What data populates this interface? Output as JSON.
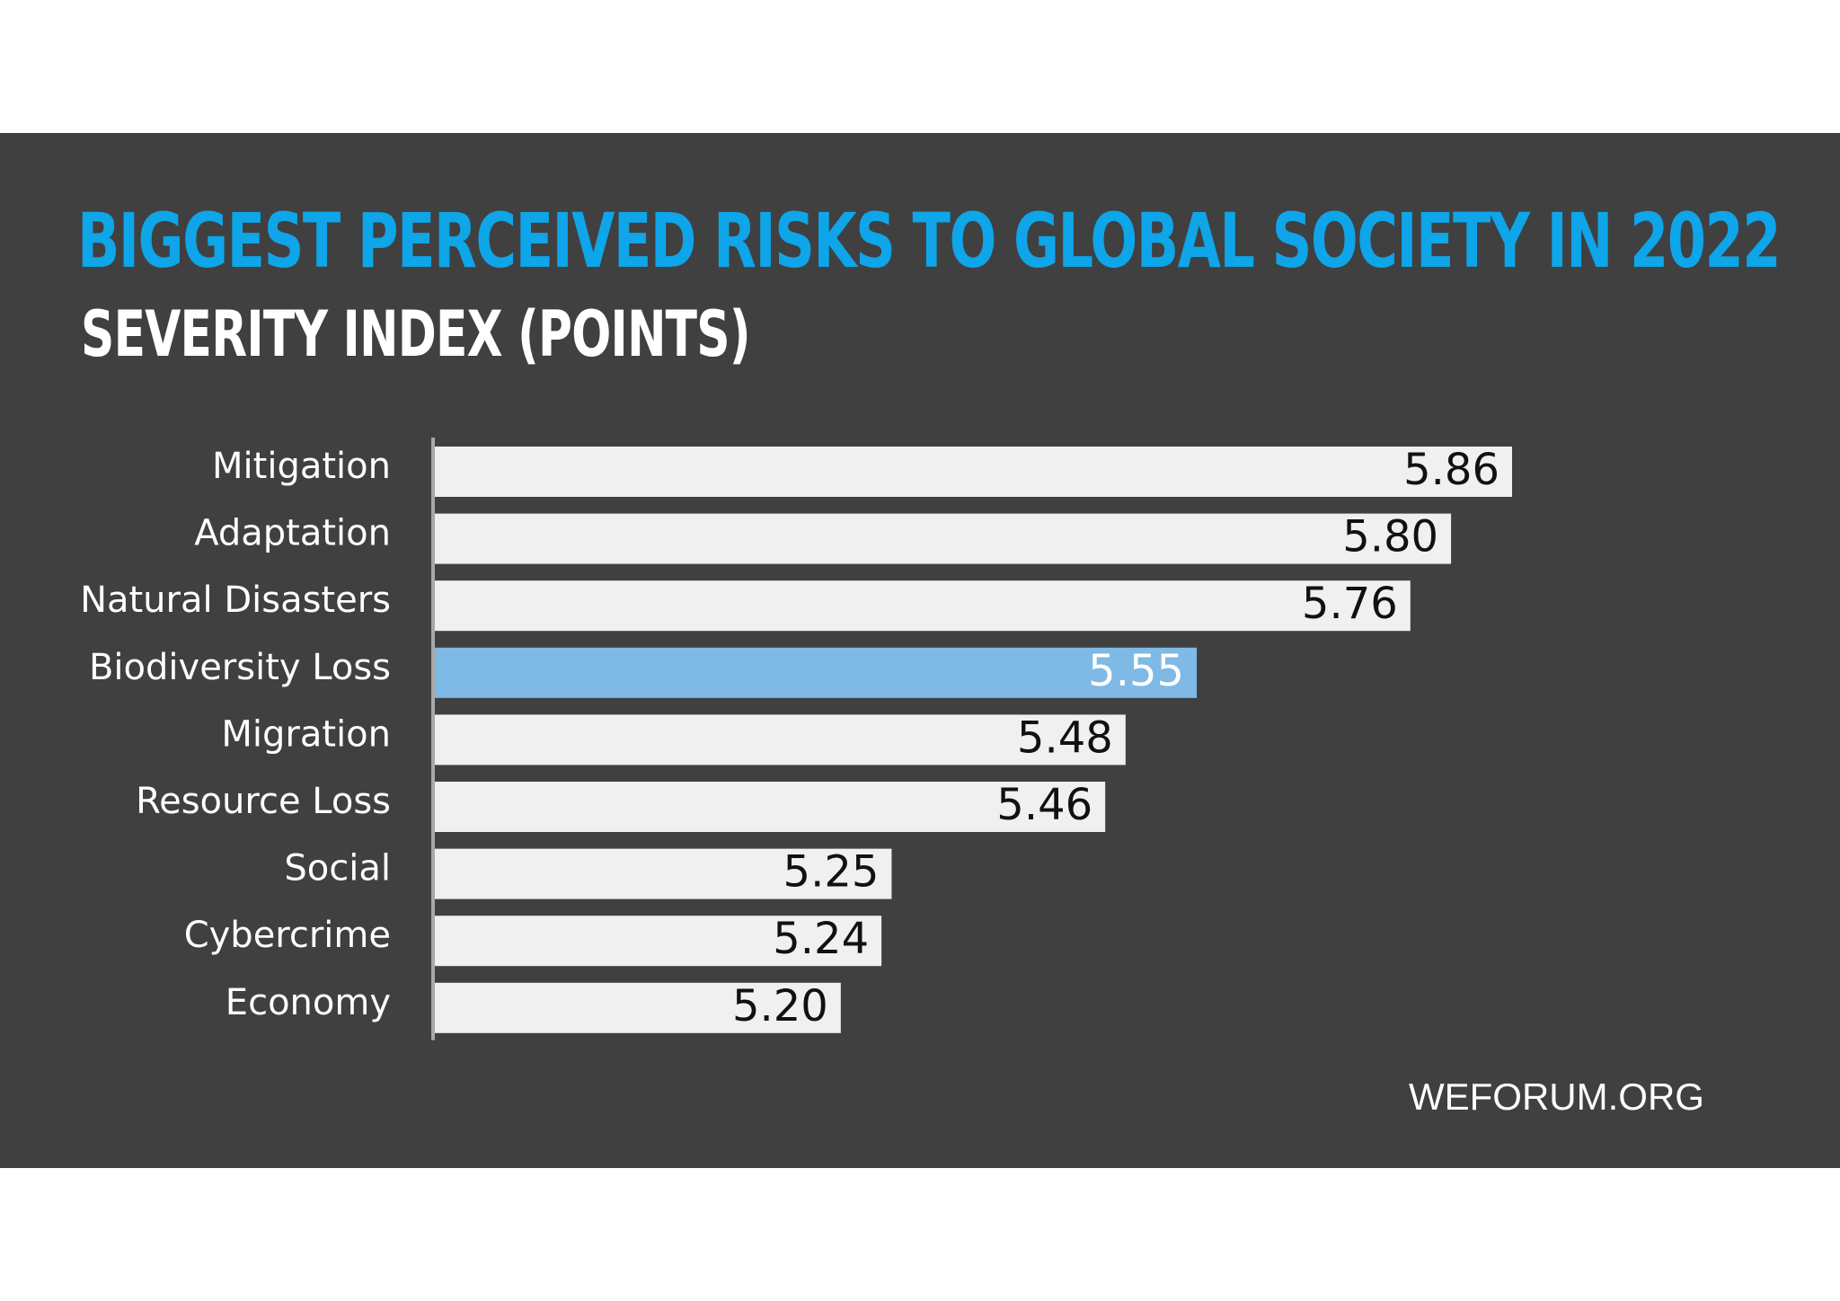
{
  "chart_data": {
    "type": "bar",
    "orientation": "horizontal",
    "title": "BIGGEST PERCEIVED RISKS TO GLOBAL SOCIETY IN 2022",
    "subtitle": "SEVERITY INDEX (POINTS)",
    "categories": [
      "Mitigation",
      "Adaptation",
      "Natural Disasters",
      "Biodiversity Loss",
      "Migration",
      "Resource Loss",
      "Social",
      "Cybercrime",
      "Economy"
    ],
    "values": [
      5.86,
      5.8,
      5.76,
      5.55,
      5.48,
      5.46,
      5.25,
      5.24,
      5.2
    ],
    "value_labels": [
      "5.86",
      "5.80",
      "5.76",
      "5.55",
      "5.48",
      "5.46",
      "5.25",
      "5.24",
      "5.20"
    ],
    "highlighted": "Biodiversity Loss",
    "xlim": [
      4.8,
      5.86
    ],
    "grid": false,
    "legend": "none"
  },
  "source": "WEFORUM.ORG",
  "colors": {
    "background": "#404040",
    "page": "#ffffff",
    "title": "#0ea5e9",
    "subtitle": "#ffffff",
    "bar": "#f0f0f0",
    "bar_highlight": "#7fb9e6",
    "bar_text": "#111111",
    "bar_text_highlight": "#ffffff",
    "category_text": "#ffffff",
    "axis": "#a8a8a8"
  }
}
